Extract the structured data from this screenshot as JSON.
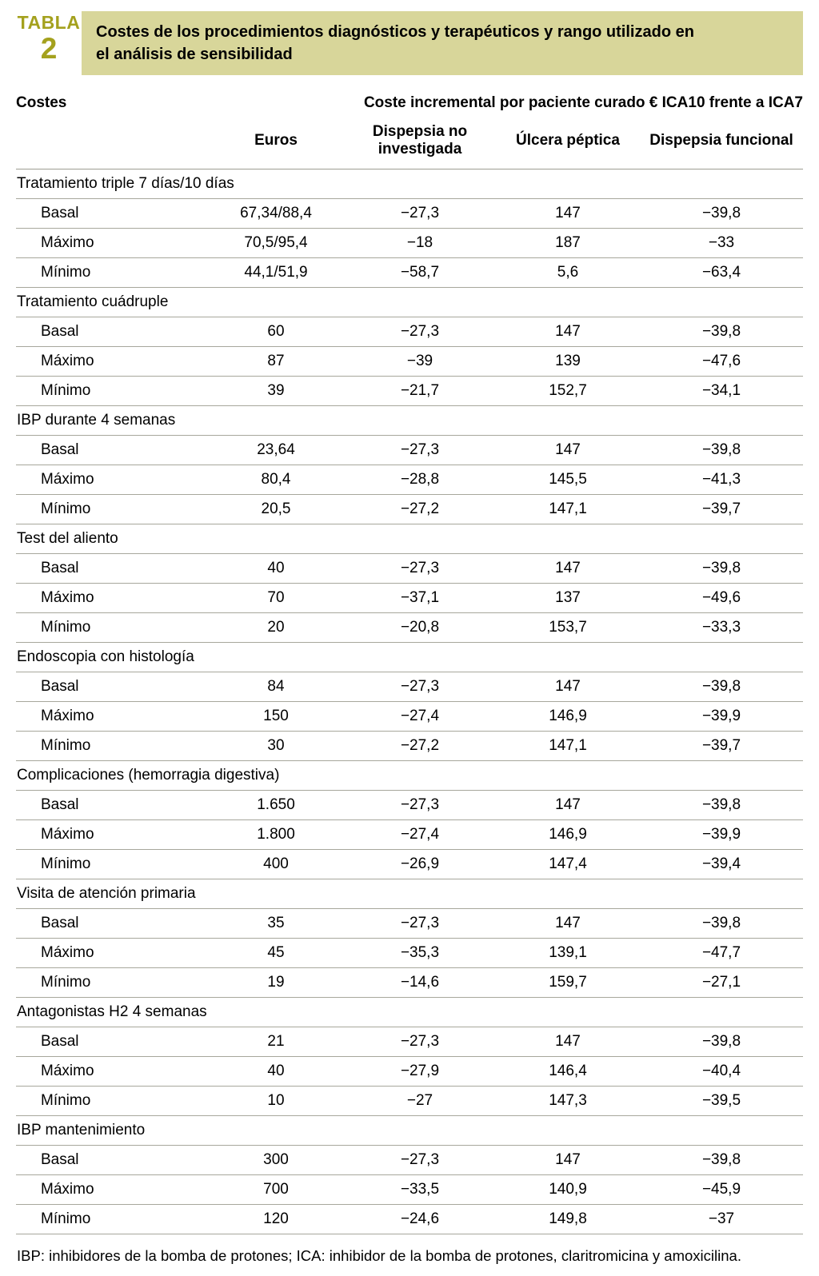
{
  "colors": {
    "accent_olive": "#a4a11e",
    "title_bar_bg": "#d8d69a",
    "rule_gray": "#a7a79c"
  },
  "header": {
    "tag": "TABLA",
    "number": "2",
    "title": "Costes de los procedimientos diagnósticos y terapéuticos y rango utilizado en el análisis de sensibilidad"
  },
  "table": {
    "left_group": "Costes",
    "right_group": "Coste incremental por paciente curado € ICA10 frente a ICA7",
    "columns": [
      "Euros",
      "Dispepsia no investigada",
      "Úlcera péptica",
      "Dispepsia funcional"
    ],
    "sections": [
      {
        "name": "Tratamiento triple 7 días/10 días",
        "rows": [
          {
            "label": "Basal",
            "values": [
              "67,34/88,4",
              "−27,3",
              "147",
              "−39,8"
            ]
          },
          {
            "label": "Máximo",
            "values": [
              "70,5/95,4",
              "−18",
              "187",
              "−33"
            ]
          },
          {
            "label": "Mínimo",
            "values": [
              "44,1/51,9",
              "−58,7",
              "5,6",
              "−63,4"
            ]
          }
        ]
      },
      {
        "name": "Tratamiento cuádruple",
        "rows": [
          {
            "label": "Basal",
            "values": [
              "60",
              "−27,3",
              "147",
              "−39,8"
            ]
          },
          {
            "label": "Máximo",
            "values": [
              "87",
              "−39",
              "139",
              "−47,6"
            ]
          },
          {
            "label": "Mínimo",
            "values": [
              "39",
              "−21,7",
              "152,7",
              "−34,1"
            ]
          }
        ]
      },
      {
        "name": "IBP durante 4 semanas",
        "rows": [
          {
            "label": "Basal",
            "values": [
              "23,64",
              "−27,3",
              "147",
              "−39,8"
            ]
          },
          {
            "label": "Máximo",
            "values": [
              "80,4",
              "−28,8",
              "145,5",
              "−41,3"
            ]
          },
          {
            "label": "Mínimo",
            "values": [
              "20,5",
              "−27,2",
              "147,1",
              "−39,7"
            ]
          }
        ]
      },
      {
        "name": "Test del aliento",
        "rows": [
          {
            "label": "Basal",
            "values": [
              "40",
              "−27,3",
              "147",
              "−39,8"
            ]
          },
          {
            "label": "Máximo",
            "values": [
              "70",
              "−37,1",
              "137",
              "−49,6"
            ]
          },
          {
            "label": "Mínimo",
            "values": [
              "20",
              "−20,8",
              "153,7",
              "−33,3"
            ]
          }
        ]
      },
      {
        "name": "Endoscopia con histología",
        "rows": [
          {
            "label": "Basal",
            "values": [
              "84",
              "−27,3",
              "147",
              "−39,8"
            ]
          },
          {
            "label": "Máximo",
            "values": [
              "150",
              "−27,4",
              "146,9",
              "−39,9"
            ]
          },
          {
            "label": "Mínimo",
            "values": [
              "30",
              "−27,2",
              "147,1",
              "−39,7"
            ]
          }
        ]
      },
      {
        "name": "Complicaciones (hemorragia digestiva)",
        "rows": [
          {
            "label": "Basal",
            "values": [
              "1.650",
              "−27,3",
              "147",
              "−39,8"
            ]
          },
          {
            "label": "Máximo",
            "values": [
              "1.800",
              "−27,4",
              "146,9",
              "−39,9"
            ]
          },
          {
            "label": "Mínimo",
            "values": [
              "400",
              "−26,9",
              "147,4",
              "−39,4"
            ]
          }
        ]
      },
      {
        "name": "Visita de atención primaria",
        "rows": [
          {
            "label": "Basal",
            "values": [
              "35",
              "−27,3",
              "147",
              "−39,8"
            ]
          },
          {
            "label": "Máximo",
            "values": [
              "45",
              "−35,3",
              "139,1",
              "−47,7"
            ]
          },
          {
            "label": "Mínimo",
            "values": [
              "19",
              "−14,6",
              "159,7",
              "−27,1"
            ]
          }
        ]
      },
      {
        "name": "Antagonistas H2 4 semanas",
        "rows": [
          {
            "label": "Basal",
            "values": [
              "21",
              "−27,3",
              "147",
              "−39,8"
            ]
          },
          {
            "label": "Máximo",
            "values": [
              "40",
              "−27,9",
              "146,4",
              "−40,4"
            ]
          },
          {
            "label": "Mínimo",
            "values": [
              "10",
              "−27",
              "147,3",
              "−39,5"
            ]
          }
        ]
      },
      {
        "name": "IBP mantenimiento",
        "rows": [
          {
            "label": "Basal",
            "values": [
              "300",
              "−27,3",
              "147",
              "−39,8"
            ]
          },
          {
            "label": "Máximo",
            "values": [
              "700",
              "−33,5",
              "140,9",
              "−45,9"
            ]
          },
          {
            "label": "Mínimo",
            "values": [
              "120",
              "−24,6",
              "149,8",
              "−37"
            ]
          }
        ]
      }
    ]
  },
  "footnote": "IBP: inhibidores de la bomba de protones; ICA: inhibidor de la bomba de protones, claritromicina y amoxicilina."
}
